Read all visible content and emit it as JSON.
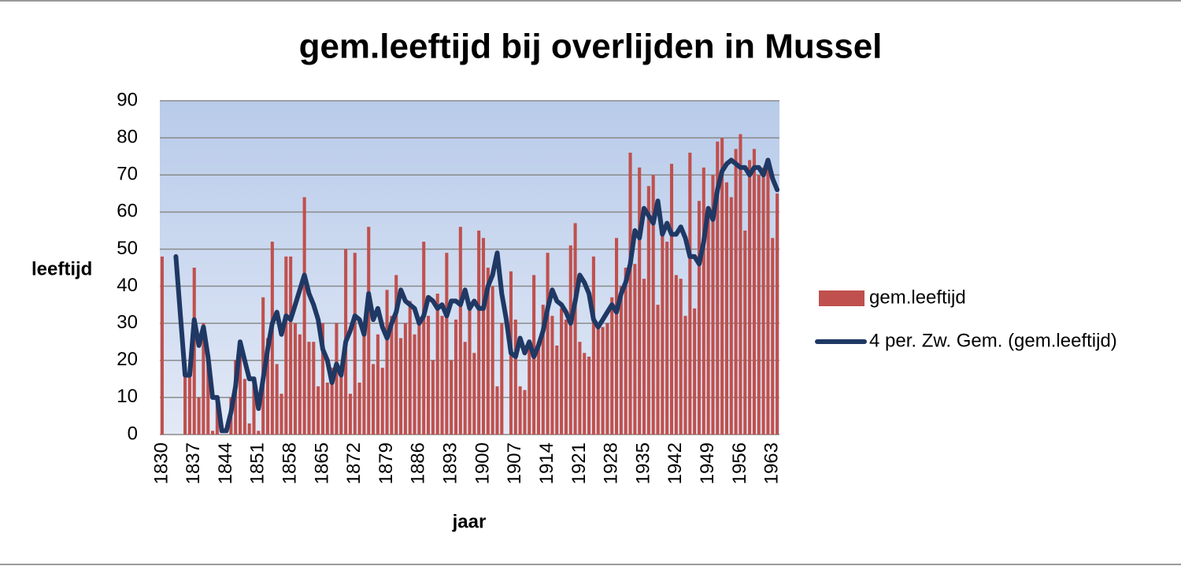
{
  "chart_data": {
    "type": "bar_line",
    "title": "gem.leeftijd bij overlijden in Mussel",
    "ylabel": "leeftijd",
    "xlabel": "jaar",
    "x": [
      1830,
      1831,
      1832,
      1833,
      1834,
      1835,
      1836,
      1837,
      1838,
      1839,
      1840,
      1841,
      1842,
      1843,
      1844,
      1845,
      1846,
      1847,
      1848,
      1849,
      1850,
      1851,
      1852,
      1853,
      1854,
      1855,
      1856,
      1857,
      1858,
      1859,
      1860,
      1861,
      1862,
      1863,
      1864,
      1865,
      1866,
      1867,
      1868,
      1869,
      1870,
      1871,
      1872,
      1873,
      1874,
      1875,
      1876,
      1877,
      1878,
      1879,
      1880,
      1881,
      1882,
      1883,
      1884,
      1885,
      1886,
      1887,
      1888,
      1889,
      1890,
      1891,
      1892,
      1893,
      1894,
      1895,
      1896,
      1897,
      1898,
      1899,
      1900,
      1901,
      1902,
      1903,
      1904,
      1905,
      1906,
      1907,
      1908,
      1909,
      1910,
      1911,
      1912,
      1913,
      1914,
      1915,
      1916,
      1917,
      1918,
      1919,
      1920,
      1921,
      1922,
      1923,
      1924,
      1925,
      1926,
      1927,
      1928,
      1929,
      1930,
      1931,
      1932,
      1933,
      1934,
      1935,
      1936,
      1937,
      1938,
      1939,
      1940,
      1941,
      1942,
      1943,
      1944,
      1945,
      1946,
      1947,
      1948,
      1949,
      1950,
      1951,
      1952,
      1953,
      1954,
      1955,
      1956,
      1957,
      1958,
      1959,
      1960,
      1961,
      1962,
      1963,
      1964
    ],
    "series": [
      {
        "name": "gem.leeftijd",
        "kind": "bar",
        "color": "#c0504d",
        "values": [
          48,
          null,
          null,
          null,
          null,
          16,
          16,
          45,
          10,
          30,
          20,
          1,
          10,
          0,
          0,
          10,
          20,
          24,
          15,
          3,
          15,
          1,
          37,
          26,
          52,
          19,
          11,
          48,
          48,
          30,
          27,
          64,
          25,
          25,
          13,
          30,
          14,
          18,
          30,
          16,
          50,
          11,
          49,
          14,
          30,
          56,
          19,
          27,
          18,
          39,
          32,
          43,
          26,
          30,
          36,
          27,
          30,
          52,
          32,
          20,
          38,
          32,
          49,
          20,
          31,
          56,
          25,
          35,
          22,
          55,
          53,
          45,
          40,
          13,
          30,
          null,
          44,
          31,
          13,
          12,
          25,
          43,
          25,
          35,
          49,
          32,
          24,
          34,
          31,
          51,
          57,
          25,
          22,
          21,
          48,
          30,
          29,
          30,
          37,
          53,
          40,
          45,
          76,
          46,
          72,
          42,
          67,
          70,
          35,
          55,
          52,
          73,
          43,
          42,
          32,
          76,
          34,
          63,
          72,
          60,
          70,
          79,
          80,
          68,
          64,
          77,
          81,
          55,
          74,
          77,
          70,
          72,
          72,
          53,
          65
        ]
      },
      {
        "name": "4 per. Zw. Gem. (gem.leeftijd)",
        "kind": "line",
        "color": "#1f3864",
        "values": [
          null,
          null,
          null,
          48,
          32,
          16,
          16,
          31,
          24,
          29,
          21,
          10,
          10,
          1,
          1,
          6,
          13,
          25,
          20,
          15,
          15,
          7,
          15,
          23,
          30,
          33,
          27,
          32,
          31,
          35,
          39,
          43,
          38,
          35,
          31,
          23,
          20,
          14,
          19,
          16,
          25,
          28,
          32,
          31,
          27,
          38,
          31,
          34,
          29,
          26,
          30,
          33,
          39,
          36,
          35,
          34,
          30,
          32,
          37,
          36,
          34,
          35,
          32,
          36,
          36,
          35,
          39,
          34,
          36,
          34,
          34,
          40,
          43,
          49,
          38,
          31,
          22,
          21,
          26,
          22,
          25,
          21,
          24,
          28,
          34,
          39,
          36,
          35,
          33,
          30,
          36,
          43,
          41,
          38,
          31,
          29,
          31,
          33,
          35,
          33,
          38,
          41,
          46,
          55,
          53,
          61,
          59,
          57,
          63,
          54,
          57,
          54,
          54,
          56,
          53,
          48,
          48,
          46,
          52,
          61,
          58,
          66,
          71,
          73,
          74,
          73,
          72,
          72,
          70,
          72,
          72,
          70,
          74,
          69,
          66
        ]
      }
    ],
    "xlim": [
      1829.5,
      1964.5
    ],
    "xticks": [
      1830,
      1837,
      1844,
      1851,
      1858,
      1865,
      1872,
      1879,
      1886,
      1893,
      1900,
      1907,
      1914,
      1921,
      1928,
      1935,
      1942,
      1949,
      1956,
      1963
    ],
    "ylim": [
      0,
      90
    ],
    "yticks": [
      0,
      10,
      20,
      30,
      40,
      50,
      60,
      70,
      80,
      90
    ],
    "grid": true,
    "legend": "right"
  }
}
